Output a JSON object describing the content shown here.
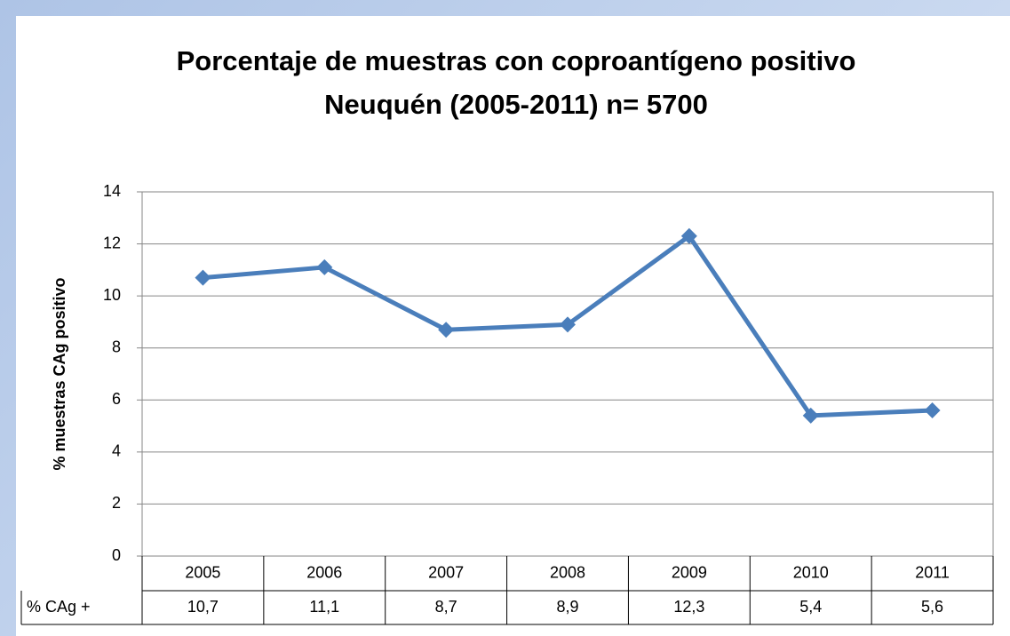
{
  "chart_data": {
    "type": "line",
    "title": "Porcentaje de muestras con coproantígeno positivo",
    "subtitle": "Neuquén (2005-2011) n= 5700",
    "y_label": "% muestras CAg positivo",
    "categories": [
      "2005",
      "2006",
      "2007",
      "2008",
      "2009",
      "2010",
      "2011"
    ],
    "series": [
      {
        "name": "% CAg +",
        "color": "#4a7ebb",
        "values": [
          10.7,
          11.1,
          8.7,
          8.9,
          12.3,
          5.4,
          5.6
        ],
        "value_labels": [
          "10,7",
          "11,1",
          "8,7",
          "8,9",
          "12,3",
          "5,4",
          "5,6"
        ]
      }
    ],
    "ylim": [
      0,
      14
    ],
    "yticks": [
      0,
      2,
      4,
      6,
      8,
      10,
      12,
      14
    ],
    "grid": true
  }
}
